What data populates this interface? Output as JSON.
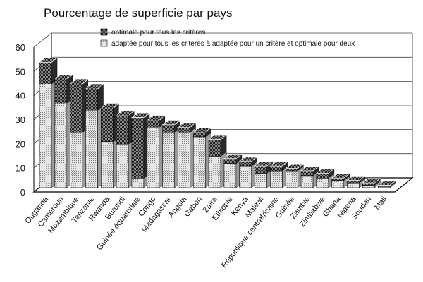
{
  "chart_data": {
    "type": "bar",
    "stacked": true,
    "three_d": true,
    "title": "Pourcentage de superficie par pays",
    "xlabel": "",
    "ylabel": "",
    "ylim": [
      0,
      60
    ],
    "yticks": [
      0,
      10,
      20,
      30,
      40,
      50,
      60
    ],
    "grid": true,
    "legend_position": "top",
    "categories": [
      "Ouganda",
      "Cameroun",
      "Mozambique",
      "Tanzanie",
      "Rwanda",
      "Burundi",
      "Guinée équatoriale",
      "Congo",
      "Madagascar",
      "Angola",
      "Gabon",
      "Zaïre",
      "Ethiopie",
      "Kenya",
      "Malawi",
      "République centrafricaine",
      "Guinée",
      "Zambie",
      "Zimbabwe",
      "Ghana",
      "Nigeria",
      "Soudan",
      "Mali"
    ],
    "series": [
      {
        "name": "adaptée pour tous les critères à adaptée pour un critère et optimale pour deux",
        "color": "#c8c8c8",
        "values": [
          43,
          35,
          23,
          32,
          19,
          18,
          4,
          25,
          23,
          23,
          21,
          13,
          10,
          9,
          6,
          7,
          7,
          5,
          4,
          3,
          2,
          1,
          0.5
        ]
      },
      {
        "name": "optimale pour tous les critères",
        "color": "#505050",
        "values": [
          9,
          10,
          20,
          9,
          14,
          12,
          25,
          3,
          3,
          2,
          2,
          7,
          2,
          2,
          3,
          2,
          1,
          2,
          2,
          1,
          1,
          1,
          0.5
        ]
      }
    ]
  }
}
